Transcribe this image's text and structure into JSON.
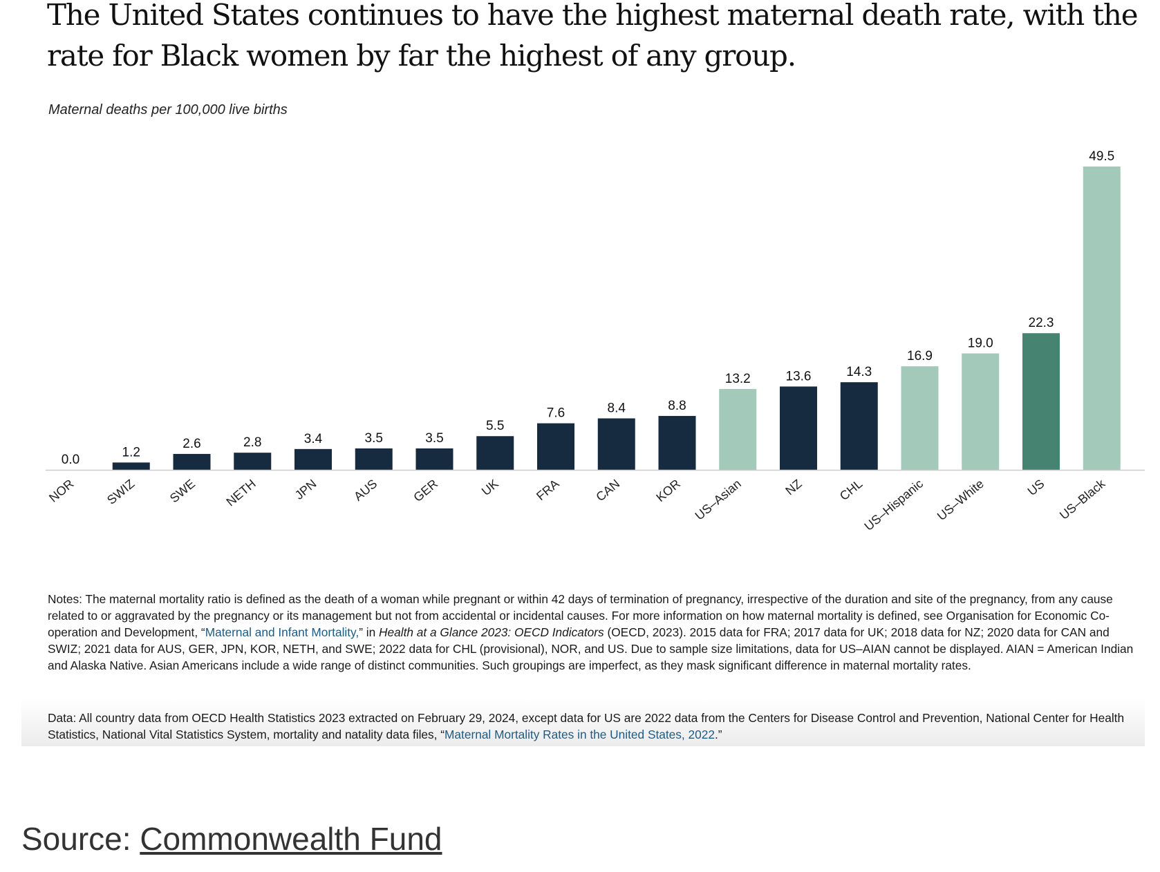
{
  "title": "The United States continues to have the highest maternal death rate, with the rate for Black women by far the highest of any group.",
  "subtitle": "Maternal deaths per 100,000 live births",
  "colors": {
    "country": "#172b40",
    "us_group": "#a3c9bb",
    "us_total": "#478371",
    "axis": "#cccccc"
  },
  "chart_data": {
    "type": "bar",
    "title": "The United States continues to have the highest maternal death rate, with the rate for Black women by far the highest of any group.",
    "ylabel": "Maternal deaths per 100,000 live births",
    "xlabel": "",
    "ylim": [
      0,
      49.5
    ],
    "grid": false,
    "categories": [
      "NOR",
      "SWIZ",
      "SWE",
      "NETH",
      "JPN",
      "AUS",
      "GER",
      "UK",
      "FRA",
      "CAN",
      "KOR",
      "US–Asian",
      "NZ",
      "CHL",
      "US–Hispanic",
      "US–White",
      "US",
      "US–Black"
    ],
    "values": [
      0.0,
      1.2,
      2.6,
      2.8,
      3.4,
      3.5,
      3.5,
      5.5,
      7.6,
      8.4,
      8.8,
      13.2,
      13.6,
      14.3,
      16.9,
      19.0,
      22.3,
      49.5
    ],
    "value_labels": [
      "0.0",
      "1.2",
      "2.6",
      "2.8",
      "3.4",
      "3.5",
      "3.5",
      "5.5",
      "7.6",
      "8.4",
      "8.8",
      "13.2",
      "13.6",
      "14.3",
      "16.9",
      "19.0",
      "22.3",
      "49.5"
    ],
    "bar_groups": [
      "country",
      "country",
      "country",
      "country",
      "country",
      "country",
      "country",
      "country",
      "country",
      "country",
      "country",
      "us_group",
      "country",
      "country",
      "us_group",
      "us_group",
      "us_total",
      "us_group"
    ]
  },
  "notes": {
    "part1": "Notes: The maternal mortality ratio is defined as the death of a woman while pregnant or within 42 days of termination of pregnancy, irrespective of the duration and site of the pregnancy, from any cause related to or aggravated by the pregnancy or its management but not from accidental or incidental causes. For more information on how maternal mortality is defined, see Organisation for Economic Co-operation and Development, “",
    "link": "Maternal and Infant Mortality,",
    "part2": "” in ",
    "italic": "Health at a Glance 2023: OECD Indicators",
    "part3": " (OECD, 2023). 2015 data for FRA; 2017 data for UK; 2018 data for NZ; 2020 data for CAN and SWIZ; 2021 data for AUS, GER, JPN, KOR, NETH, and SWE; 2022 data for CHL (provisional), NOR, and US. Due to sample size limitations, data for US–AIAN cannot be displayed. AIAN = American Indian and Alaska Native. Asian Americans include a wide range of distinct communities. Such groupings are imperfect, as they mask significant difference in maternal mortality rates."
  },
  "data_source": {
    "part1": "Data: All country data from OECD Health Statistics 2023 extracted on February 29, 2024, except data for US are 2022 data from the Centers for Disease Control and Prevention, National Center for Health Statistics, National Vital Statistics System, mortality and natality data files, “",
    "link": "Maternal Mortality Rates in the United States, 2022",
    "part2": ".”"
  },
  "source": {
    "prefix": "Source: ",
    "link": "Commonwealth Fund"
  }
}
